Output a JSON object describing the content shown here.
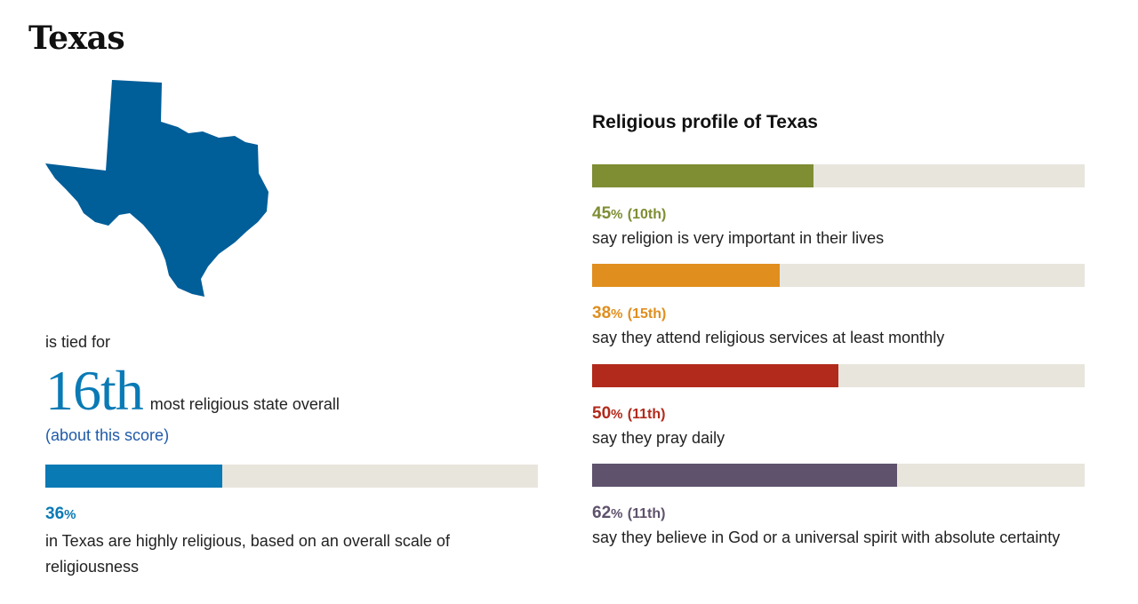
{
  "state_name": "Texas",
  "overall": {
    "lead_in": "is tied for",
    "rank_number": "16th",
    "rank_text": "most religious state overall",
    "about_link": "(about this score)",
    "percent": 36,
    "percent_text": "36",
    "percent_unit": "%",
    "description": "in Texas are highly religious, based on an overall scale of religiousness",
    "color": "#0a7ab5"
  },
  "profile": {
    "heading": "Religious profile of Texas",
    "track_color": "#e8e5dd"
  },
  "chart_data": {
    "type": "bar",
    "orientation": "horizontal",
    "xlim": [
      0,
      100
    ],
    "unit": "%",
    "items": [
      {
        "value": 45,
        "value_text": "45",
        "unit": "%",
        "rank": "(10th)",
        "label": "say religion is very important in their lives",
        "color": "#7f8d33"
      },
      {
        "value": 38,
        "value_text": "38",
        "unit": "%",
        "rank": "(15th)",
        "label": "say they attend religious services at least monthly",
        "color": "#e08e1e"
      },
      {
        "value": 50,
        "value_text": "50",
        "unit": "%",
        "rank": "(11th)",
        "label": "say they pray daily",
        "color": "#b22a1b"
      },
      {
        "value": 62,
        "value_text": "62",
        "unit": "%",
        "rank": "(11th)",
        "label": "say they believe in God or a universal spirit with absolute certainty",
        "color": "#5f526c"
      }
    ]
  }
}
